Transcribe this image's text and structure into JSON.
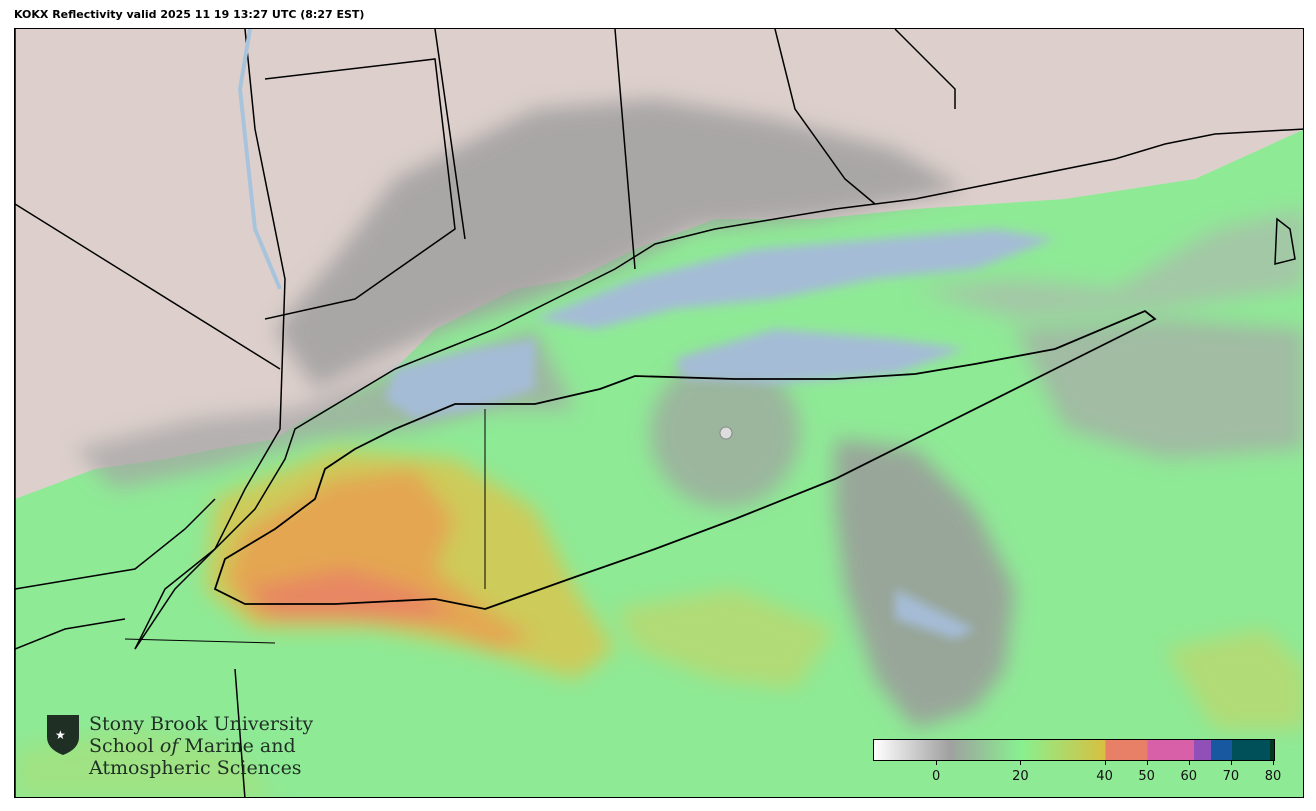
{
  "title": "KOKX Reflectivity valid 2025 11 19 13:27 UTC (8:27 EST)",
  "logo": {
    "line1": "Stony Brook University",
    "line2a": "School ",
    "line2b": "of",
    "line2c": " Marine and",
    "line3": "Atmospheric Sciences"
  },
  "colorbar": {
    "range": [
      -15,
      80
    ],
    "ticks": [
      "0",
      "20",
      "40",
      "50",
      "60",
      "70",
      "80"
    ],
    "tick_values": [
      0,
      20,
      40,
      50,
      60,
      70,
      80
    ],
    "colors": {
      "low": "#ffffff",
      "gray": "#a0a0a0",
      "green": "#88f090",
      "yellow": "#d8c040",
      "orange": "#e88068",
      "pink": "#d860a8",
      "purple": "#9050b8",
      "blue": "#1858a0",
      "teal": "#00505a",
      "dark": "#003820"
    }
  },
  "colors": {
    "land": "#ddd0cc",
    "water": "#a8c0d8",
    "echo_green": "#90ec98",
    "echo_gray": "#9a9a9a",
    "echo_orange": "#e8a050"
  }
}
